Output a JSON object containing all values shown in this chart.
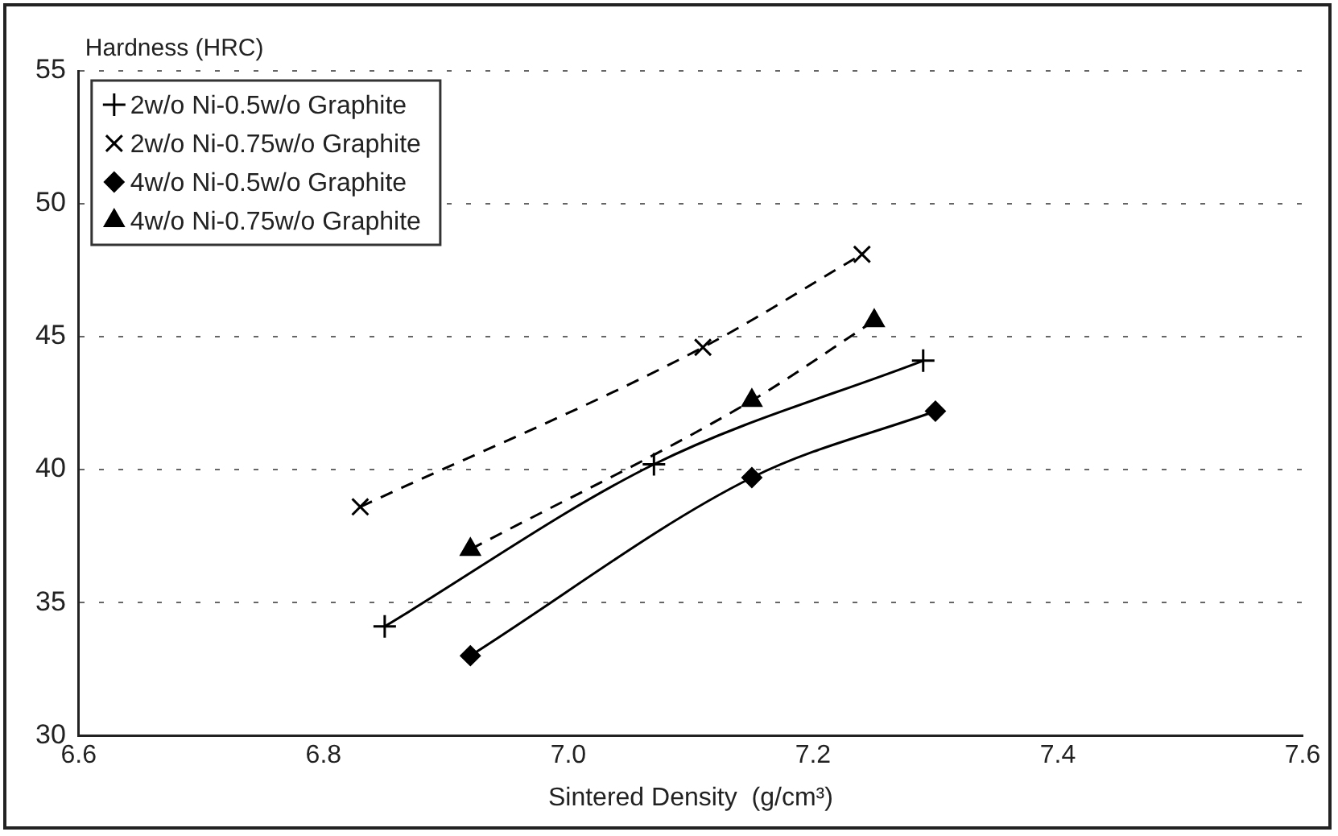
{
  "chart_data": {
    "type": "line",
    "xlabel": "Sintered Density  (g/cm³)",
    "ylabel": "Hardness (HRC)",
    "xlim": [
      6.6,
      7.6
    ],
    "xticks": [
      6.6,
      6.8,
      {
        "value": 7.0,
        "label": "7.0"
      },
      7.2,
      7.4,
      7.6
    ],
    "ylim": [
      30,
      55
    ],
    "yticks": [
      30,
      35,
      40,
      45,
      50,
      55
    ],
    "grid": "y",
    "legend": "top left",
    "series": [
      {
        "name": "2w/o Ni-0.5w/o Graphite",
        "color": "#000000",
        "marker": "cross",
        "line_style": "solid",
        "x": [
          6.85,
          7.07,
          7.29
        ],
        "values": [
          34.1,
          40.2,
          44.1
        ]
      },
      {
        "name": "2w/o Ni-0.75w/o Graphite",
        "color": "#000000",
        "marker": "x",
        "line_style": "dashed",
        "x": [
          6.83,
          7.11,
          7.24
        ],
        "values": [
          38.6,
          44.6,
          48.1
        ]
      },
      {
        "name": "4w/o Ni-0.5w/o Graphite",
        "color": "#000000",
        "marker": "diamond",
        "line_style": "solid",
        "x": [
          6.92,
          7.15,
          7.3
        ],
        "values": [
          33.0,
          39.7,
          42.2
        ]
      },
      {
        "name": "4w/o Ni-0.75w/o Graphite",
        "color": "#000000",
        "marker": "triangle",
        "line_style": "dashed",
        "x": [
          6.92,
          7.15,
          7.25
        ],
        "values": [
          37.0,
          42.6,
          45.6
        ]
      }
    ]
  }
}
